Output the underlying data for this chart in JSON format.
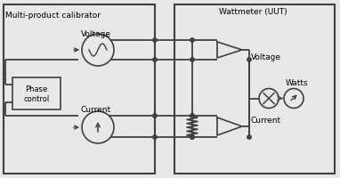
{
  "bg_color": "#e8e8e8",
  "line_color": "#404040",
  "title_left": "Multi-product calibrator",
  "title_right": "Wattmeter (UUT)",
  "label_voltage_left": "Voltage",
  "label_current_left": "Current",
  "label_voltage_right": "Voltage",
  "label_current_right": "Current",
  "label_watts": "Watts",
  "label_phase": "Phase\ncontrol",
  "fig_width": 3.82,
  "fig_height": 2.0,
  "dpi": 100
}
